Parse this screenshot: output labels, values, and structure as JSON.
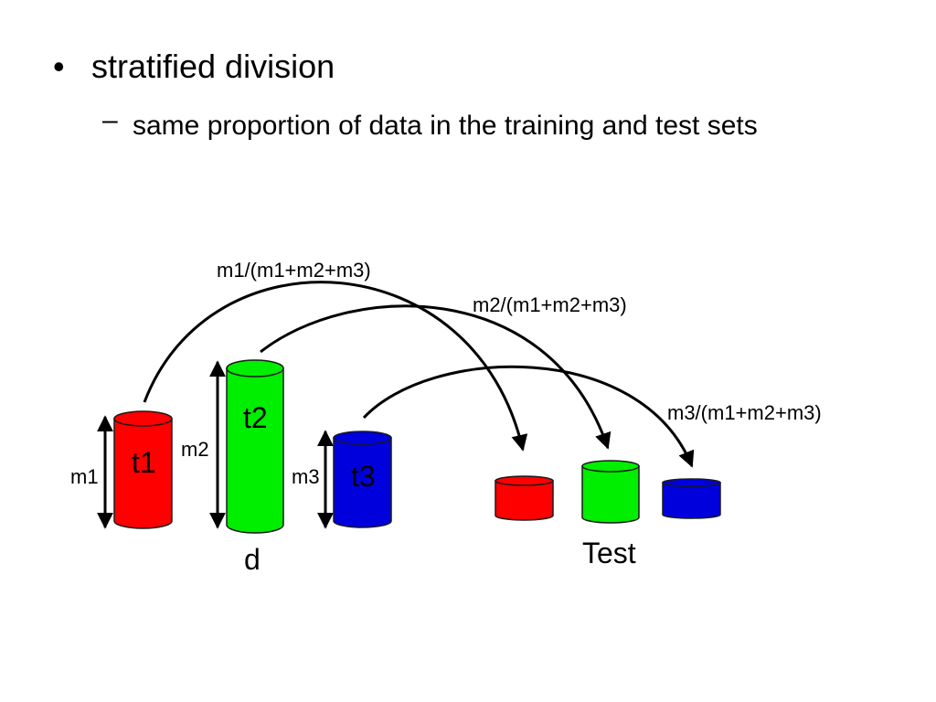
{
  "bullets": [
    {
      "text": "stratified division",
      "sub": [
        "same proportion of data in the training and test sets"
      ]
    }
  ],
  "diagram": {
    "fractions": [
      "m1/(m1+m2+m3)",
      "m2/(m1+m2+m3)",
      "m3/(m1+m2+m3)"
    ],
    "cylinders": [
      {
        "label": "t1",
        "size": "m1"
      },
      {
        "label": "t2",
        "size": "m2"
      },
      {
        "label": "t3",
        "size": "m3"
      }
    ],
    "dataset_label": "d",
    "test_label": "Test"
  }
}
